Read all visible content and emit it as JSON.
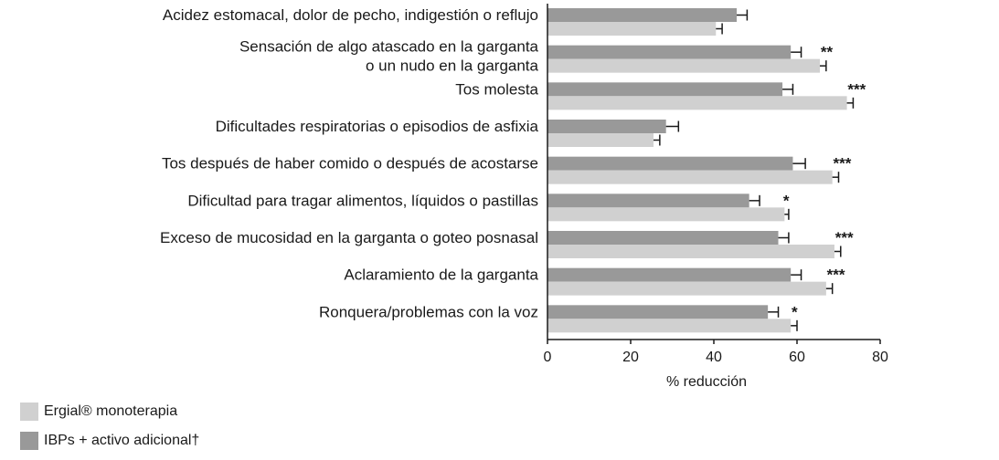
{
  "chart_data": {
    "type": "bar",
    "orientation": "horizontal",
    "categories": [
      [
        "Acidez estomacal, dolor de pecho, indigestión o reflujo"
      ],
      [
        "Sensación de algo atascado en la garganta",
        "o un nudo en la garganta"
      ],
      [
        "Tos molesta"
      ],
      [
        "Dificultades respiratorias o episodios de asfixia"
      ],
      [
        "Tos después de haber comido o después de acostarse"
      ],
      [
        "Dificultad para tragar alimentos, líquidos o pastillas"
      ],
      [
        "Exceso de mucosidad en la garganta o goteo posnasal"
      ],
      [
        "Aclaramiento de la garganta"
      ],
      [
        "Ronquera/problemas con la voz"
      ]
    ],
    "series": [
      {
        "name": "IBPs + activo adicional†",
        "color": "#999999",
        "values": [
          45.5,
          58.5,
          56.5,
          28.5,
          59,
          48.5,
          55.5,
          58.5,
          53
        ],
        "error_high": [
          48,
          61,
          59,
          31.5,
          62,
          51,
          58,
          61,
          55.5
        ]
      },
      {
        "name": "Ergial® monoterapia",
        "color": "#d0d0d0",
        "values": [
          40.5,
          65.5,
          72,
          25.5,
          68.5,
          57,
          69,
          67,
          58.5
        ],
        "error_high": [
          42,
          67,
          73.5,
          27,
          70,
          58,
          70.5,
          68.5,
          60
        ]
      }
    ],
    "significance": [
      "",
      "**",
      "***",
      "",
      "***",
      "*",
      "***",
      "***",
      "*"
    ],
    "xlabel": "% reducción",
    "xlim": [
      0,
      80
    ],
    "xticks": [
      "0",
      "20",
      "40",
      "60",
      "80"
    ],
    "grid": false
  },
  "legend": {
    "items": [
      {
        "label": "Ergial® monoterapia",
        "color": "#d0d0d0"
      },
      {
        "label": "IBPs + activo adicional†",
        "color": "#999999"
      }
    ]
  }
}
